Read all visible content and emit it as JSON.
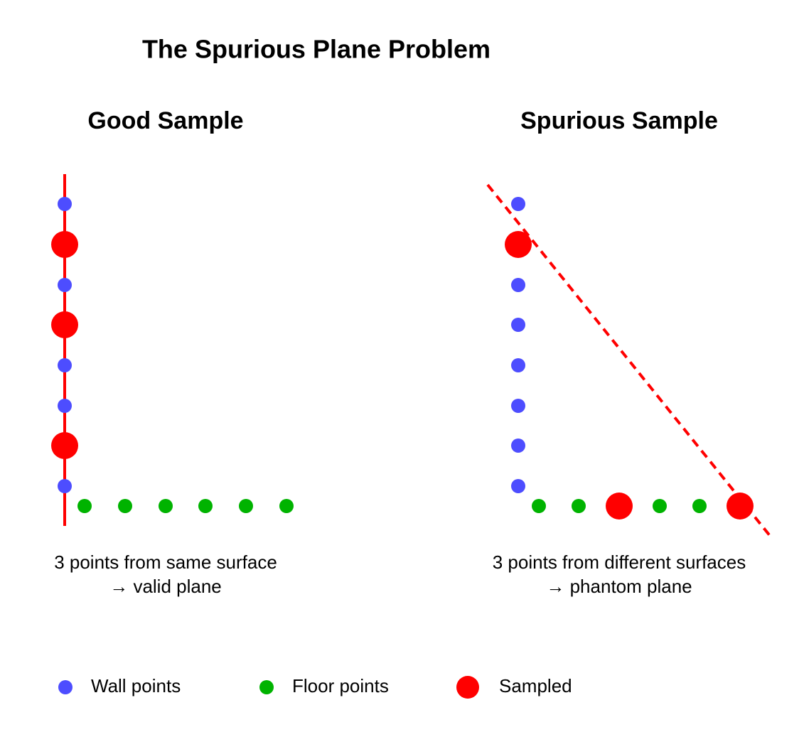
{
  "title": "The Spurious Plane Problem",
  "panels": [
    {
      "title": "Good Sample",
      "caption": [
        "3 points from same surface",
        "→ valid plane"
      ]
    },
    {
      "title": "Spurious Sample",
      "caption": [
        "3 points from different surfaces",
        "→ phantom plane"
      ]
    }
  ],
  "legend": [
    "Wall points",
    "Floor points",
    "Sampled"
  ]
}
